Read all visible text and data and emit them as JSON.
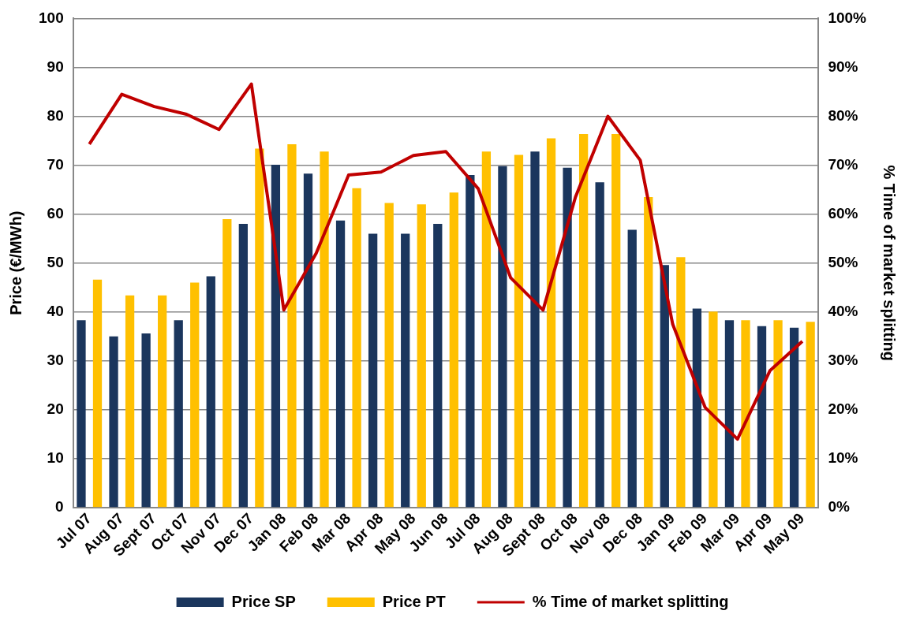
{
  "chart_data": {
    "type": "bar",
    "ylabel": "Price (€/MWh)",
    "y2label": "% Time of market splitting",
    "categories": [
      "Jul 07",
      "Aug 07",
      "Sept 07",
      "Oct 07",
      "Nov 07",
      "Dec 07",
      "Jan 08",
      "Feb 08",
      "Mar 08",
      "Apr 08",
      "May 08",
      "Jun 08",
      "Jul 08",
      "Aug 08",
      "Sept 08",
      "Oct 08",
      "Nov 08",
      "Dec 08",
      "Jan 09",
      "Feb 09",
      "Mar 09",
      "Apr 09",
      "May 09"
    ],
    "series": [
      {
        "name": "Price SP",
        "color": "#1b365d",
        "values": [
          38.3,
          35,
          35.6,
          38.3,
          47.3,
          58,
          70.1,
          68.3,
          58.7,
          56,
          56,
          58,
          68,
          69.8,
          72.8,
          69.5,
          66.5,
          56.8,
          49.6,
          40.7,
          38.3,
          37.1,
          36.8
        ]
      },
      {
        "name": "Price PT",
        "color": "#ffc000",
        "values": [
          46.6,
          43.4,
          43.4,
          46,
          59,
          73.4,
          74.3,
          72.8,
          65.3,
          62.3,
          62,
          64.4,
          72.8,
          72.1,
          75.5,
          76.4,
          76.4,
          63.5,
          51.2,
          40.1,
          38.3,
          38.3,
          38
        ]
      },
      {
        "name": "% Time of market splitting",
        "color": "#c00000",
        "type": "line",
        "axis": "y2",
        "values": [
          74.3,
          84.5,
          82,
          80.4,
          77.3,
          86.6,
          40.4,
          52,
          68,
          68.6,
          72,
          72.8,
          65.2,
          47,
          40.4,
          63.5,
          80,
          71,
          37.5,
          20.5,
          14,
          28,
          34
        ]
      }
    ],
    "ylim": [
      0,
      100
    ],
    "yticks": [
      0,
      10,
      20,
      30,
      40,
      50,
      60,
      70,
      80,
      90,
      100
    ],
    "y2lim": [
      0,
      100
    ],
    "y2ticks": [
      {
        "value": 0,
        "label": "0%"
      },
      {
        "value": 10,
        "label": "10%"
      },
      {
        "value": 20,
        "label": "20%"
      },
      {
        "value": 30,
        "label": "30%"
      },
      {
        "value": 40,
        "label": "40%"
      },
      {
        "value": 50,
        "label": "50%"
      },
      {
        "value": 60,
        "label": "60%"
      },
      {
        "value": 70,
        "label": "70%"
      },
      {
        "value": 80,
        "label": "80%"
      },
      {
        "value": 90,
        "label": "90%"
      },
      {
        "value": 100,
        "label": "100%"
      }
    ],
    "grid": "y",
    "legend": "bottom",
    "marker": "none",
    "line_style": "solid"
  }
}
